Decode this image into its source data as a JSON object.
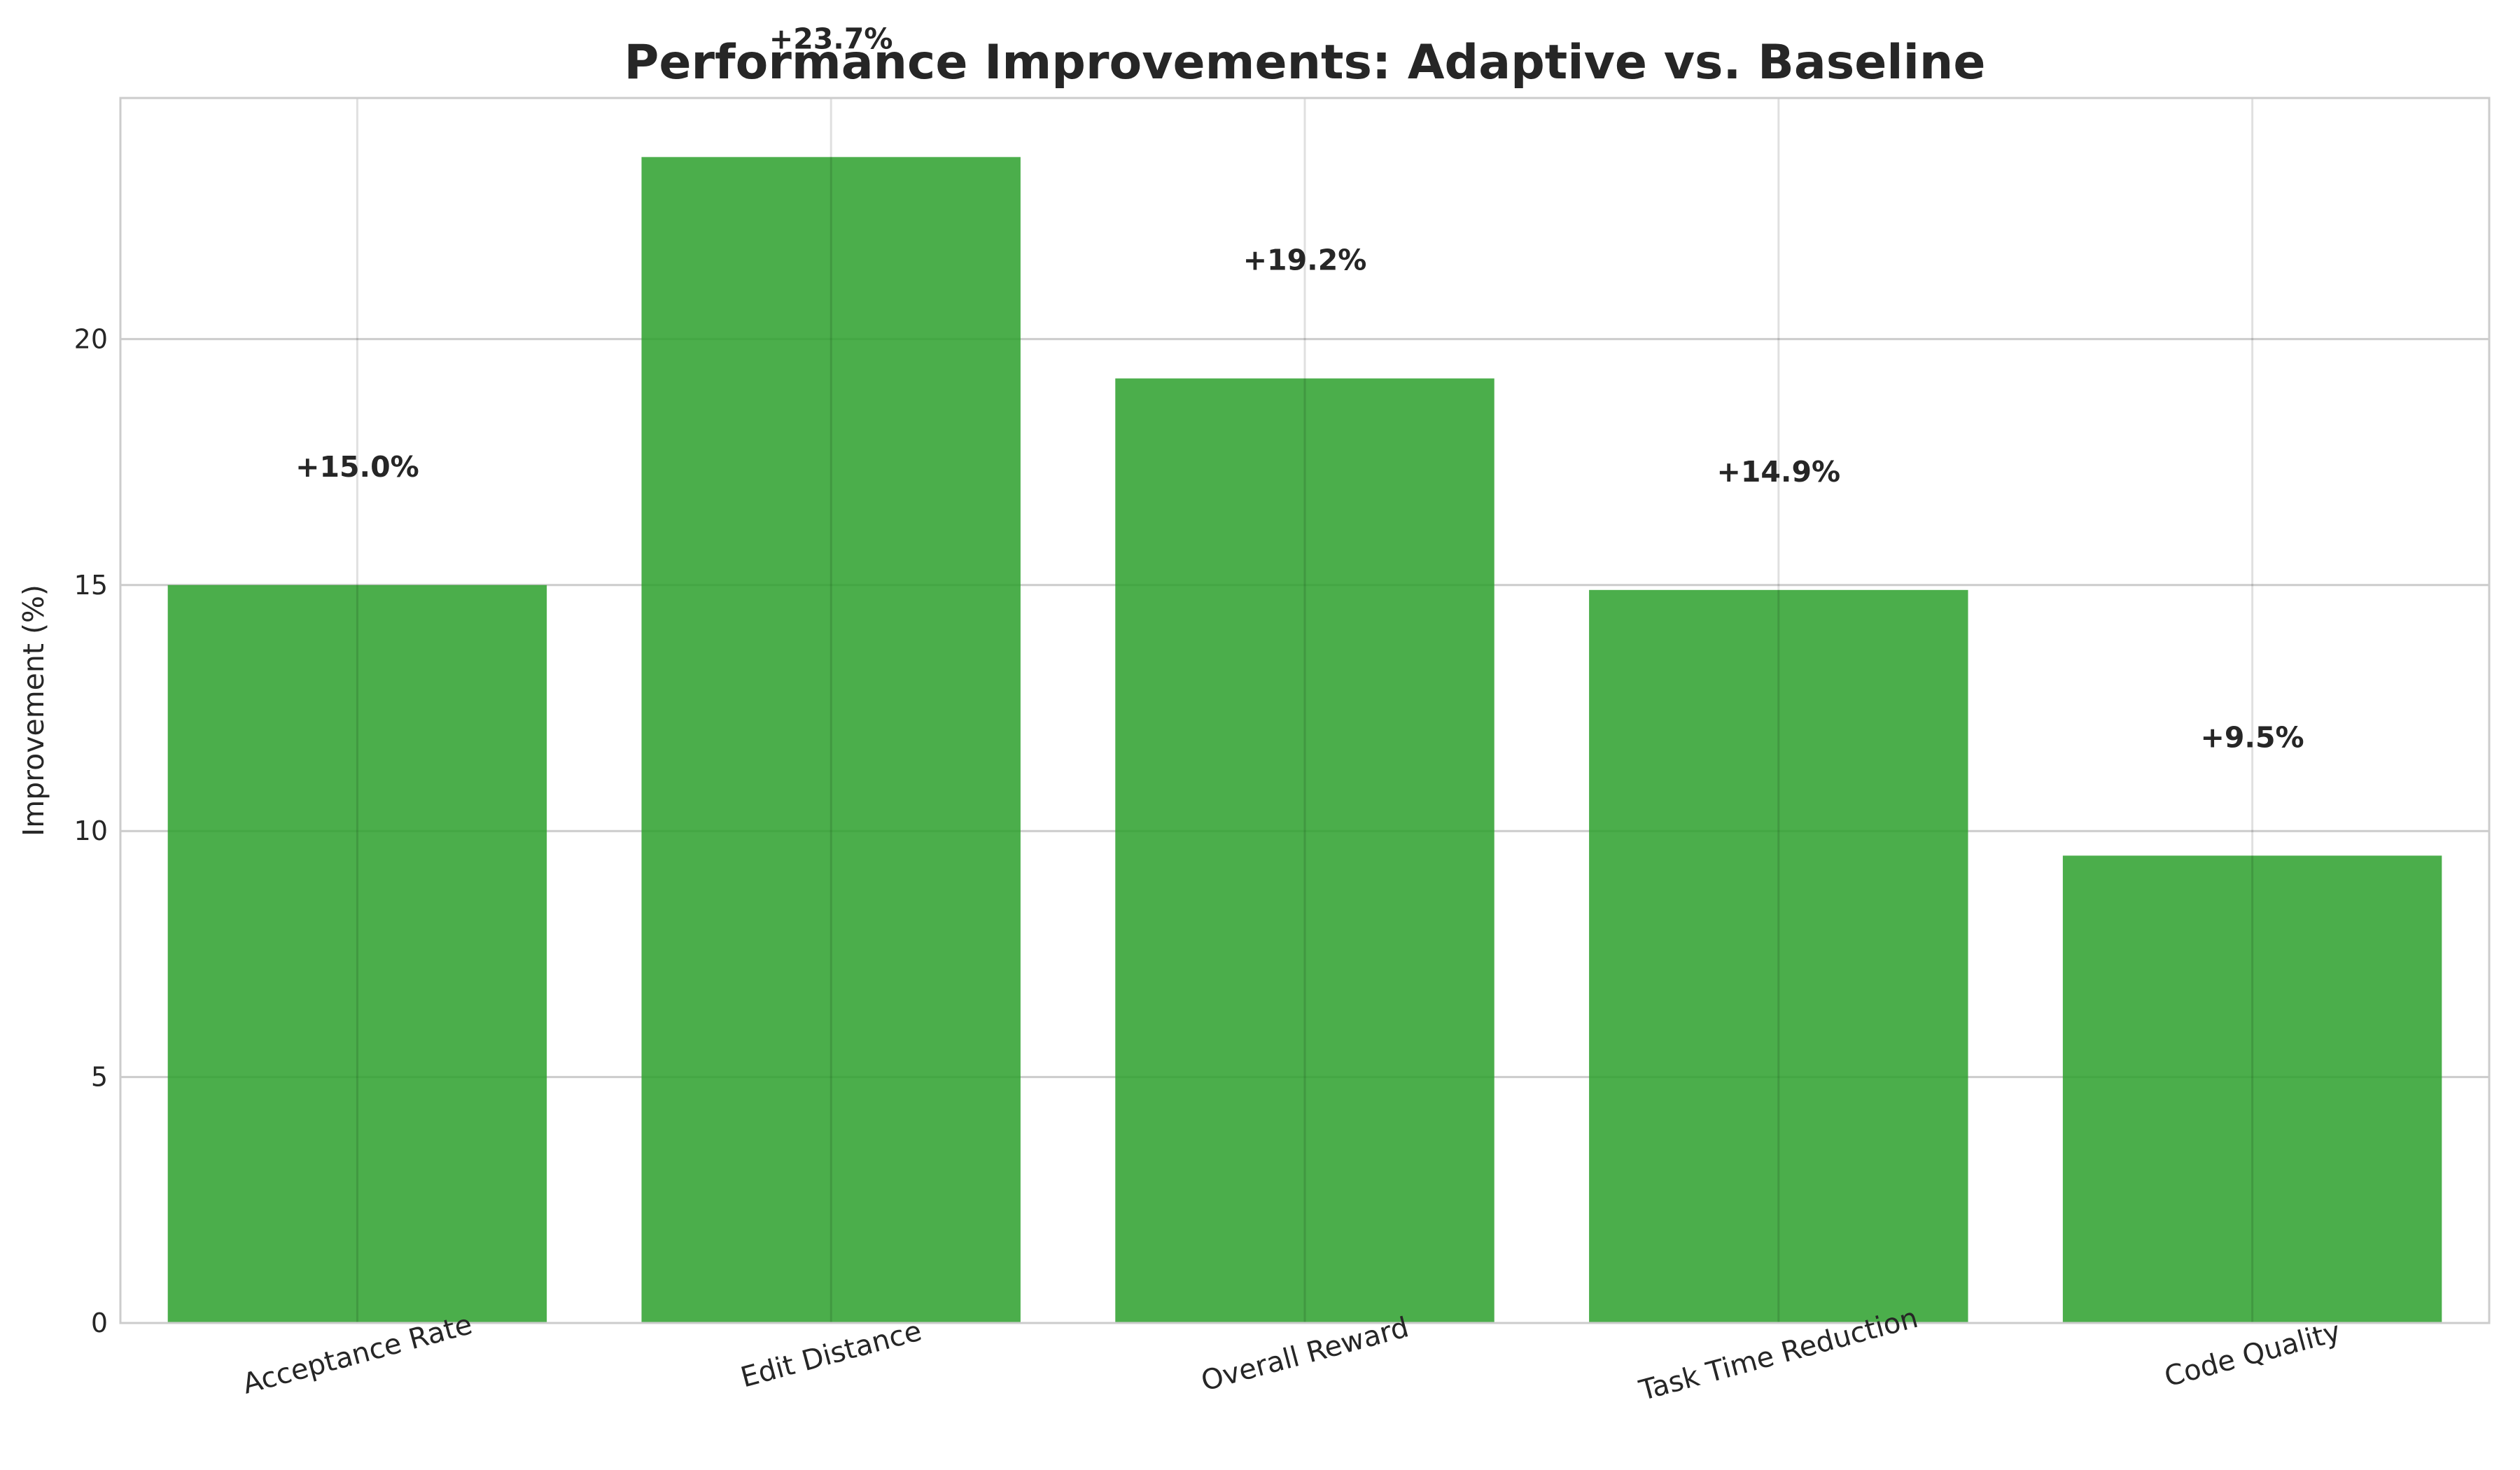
{
  "chart_data": {
    "type": "bar",
    "title": "Performance Improvements: Adaptive vs. Baseline",
    "xlabel": "",
    "ylabel": "Improvement (%)",
    "categories": [
      "Acceptance Rate",
      "Edit Distance",
      "Overall Reward",
      "Task Time Reduction",
      "Code Quality"
    ],
    "values": [
      15.0,
      23.7,
      19.2,
      14.9,
      9.5
    ],
    "data_labels": [
      "+15.0%",
      "+23.7%",
      "+19.2%",
      "+14.9%",
      "+9.5%"
    ],
    "yticks": [
      0,
      5,
      10,
      15,
      20
    ],
    "ytick_labels": [
      "0",
      "5",
      "10",
      "15",
      "20"
    ],
    "ylim": [
      0,
      24.9
    ],
    "grid": true,
    "legend": "none",
    "colors": {
      "bar": "#2ca02c",
      "grid": "#cccccc",
      "text": "#262626",
      "axes_edge": "#cccccc"
    }
  }
}
